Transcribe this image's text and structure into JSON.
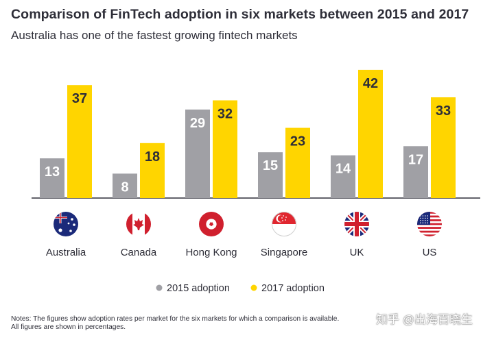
{
  "colors": {
    "series_2015": "#a0a0a5",
    "series_2017": "#ffd500",
    "label_on_2015": "#ffffff",
    "label_on_2017": "#2e2e38",
    "axis": "#2e2e38"
  },
  "chart_data": {
    "type": "bar",
    "title": "Comparison of FinTech adoption in six markets between 2015 and 2017",
    "subtitle": "Australia has one of the fastest growing fintech markets",
    "categories": [
      "Australia",
      "Canada",
      "Hong Kong",
      "Singapore",
      "UK",
      "US"
    ],
    "category_icons": [
      "australia-flag-icon",
      "canada-flag-icon",
      "hong-kong-flag-icon",
      "singapore-flag-icon",
      "uk-flag-icon",
      "us-flag-icon"
    ],
    "series": [
      {
        "name": "2015 adoption",
        "values": [
          13,
          8,
          29,
          15,
          14,
          17
        ]
      },
      {
        "name": "2017 adoption",
        "values": [
          37,
          18,
          32,
          23,
          42,
          33
        ]
      }
    ],
    "unit": "percent",
    "ylim": [
      0,
      44
    ],
    "grid": false,
    "legend_position": "bottom"
  },
  "notes": {
    "line1": "Notes: The figures show adoption rates per market for the six markets for which a comparison is available.",
    "line2": "All figures are shown in percentages."
  },
  "watermark": "知乎 @出海百晓生"
}
